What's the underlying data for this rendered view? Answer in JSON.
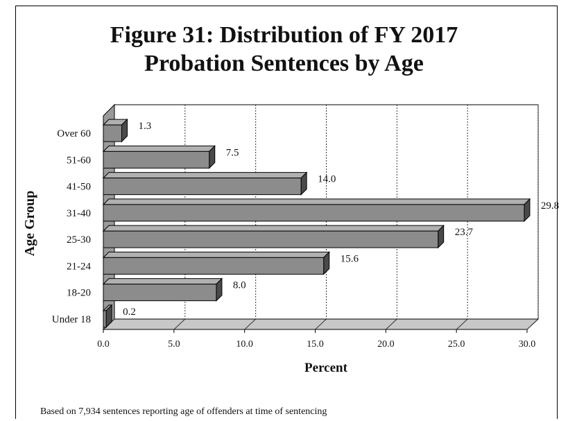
{
  "chart_data": {
    "type": "bar",
    "orientation": "horizontal",
    "title_line1": "Figure 31: Distribution of FY 2017",
    "title_line2": "Probation Sentences by Age",
    "xlabel": "Percent",
    "ylabel": "Age Group",
    "categories": [
      "Over 60",
      "51-60",
      "41-50",
      "31-40",
      "25-30",
      "21-24",
      "18-20",
      "Under 18"
    ],
    "values": [
      1.3,
      7.5,
      14.0,
      29.8,
      23.7,
      15.6,
      8.0,
      0.2
    ],
    "data_labels": [
      "1.3",
      "7.5",
      "14.0",
      "29.8",
      "23.7",
      "15.6",
      "8.0",
      "0.2"
    ],
    "x_ticks": [
      "0.0",
      "5.0",
      "10.0",
      "15.0",
      "20.0",
      "25.0",
      "30.0"
    ],
    "xlim": [
      0,
      30
    ],
    "grid": "vertical-dashed",
    "style": "3d",
    "bar_color": "#8c8c8c",
    "note": "Based on 7,934 sentences reporting age of offenders at time of sentencing"
  }
}
